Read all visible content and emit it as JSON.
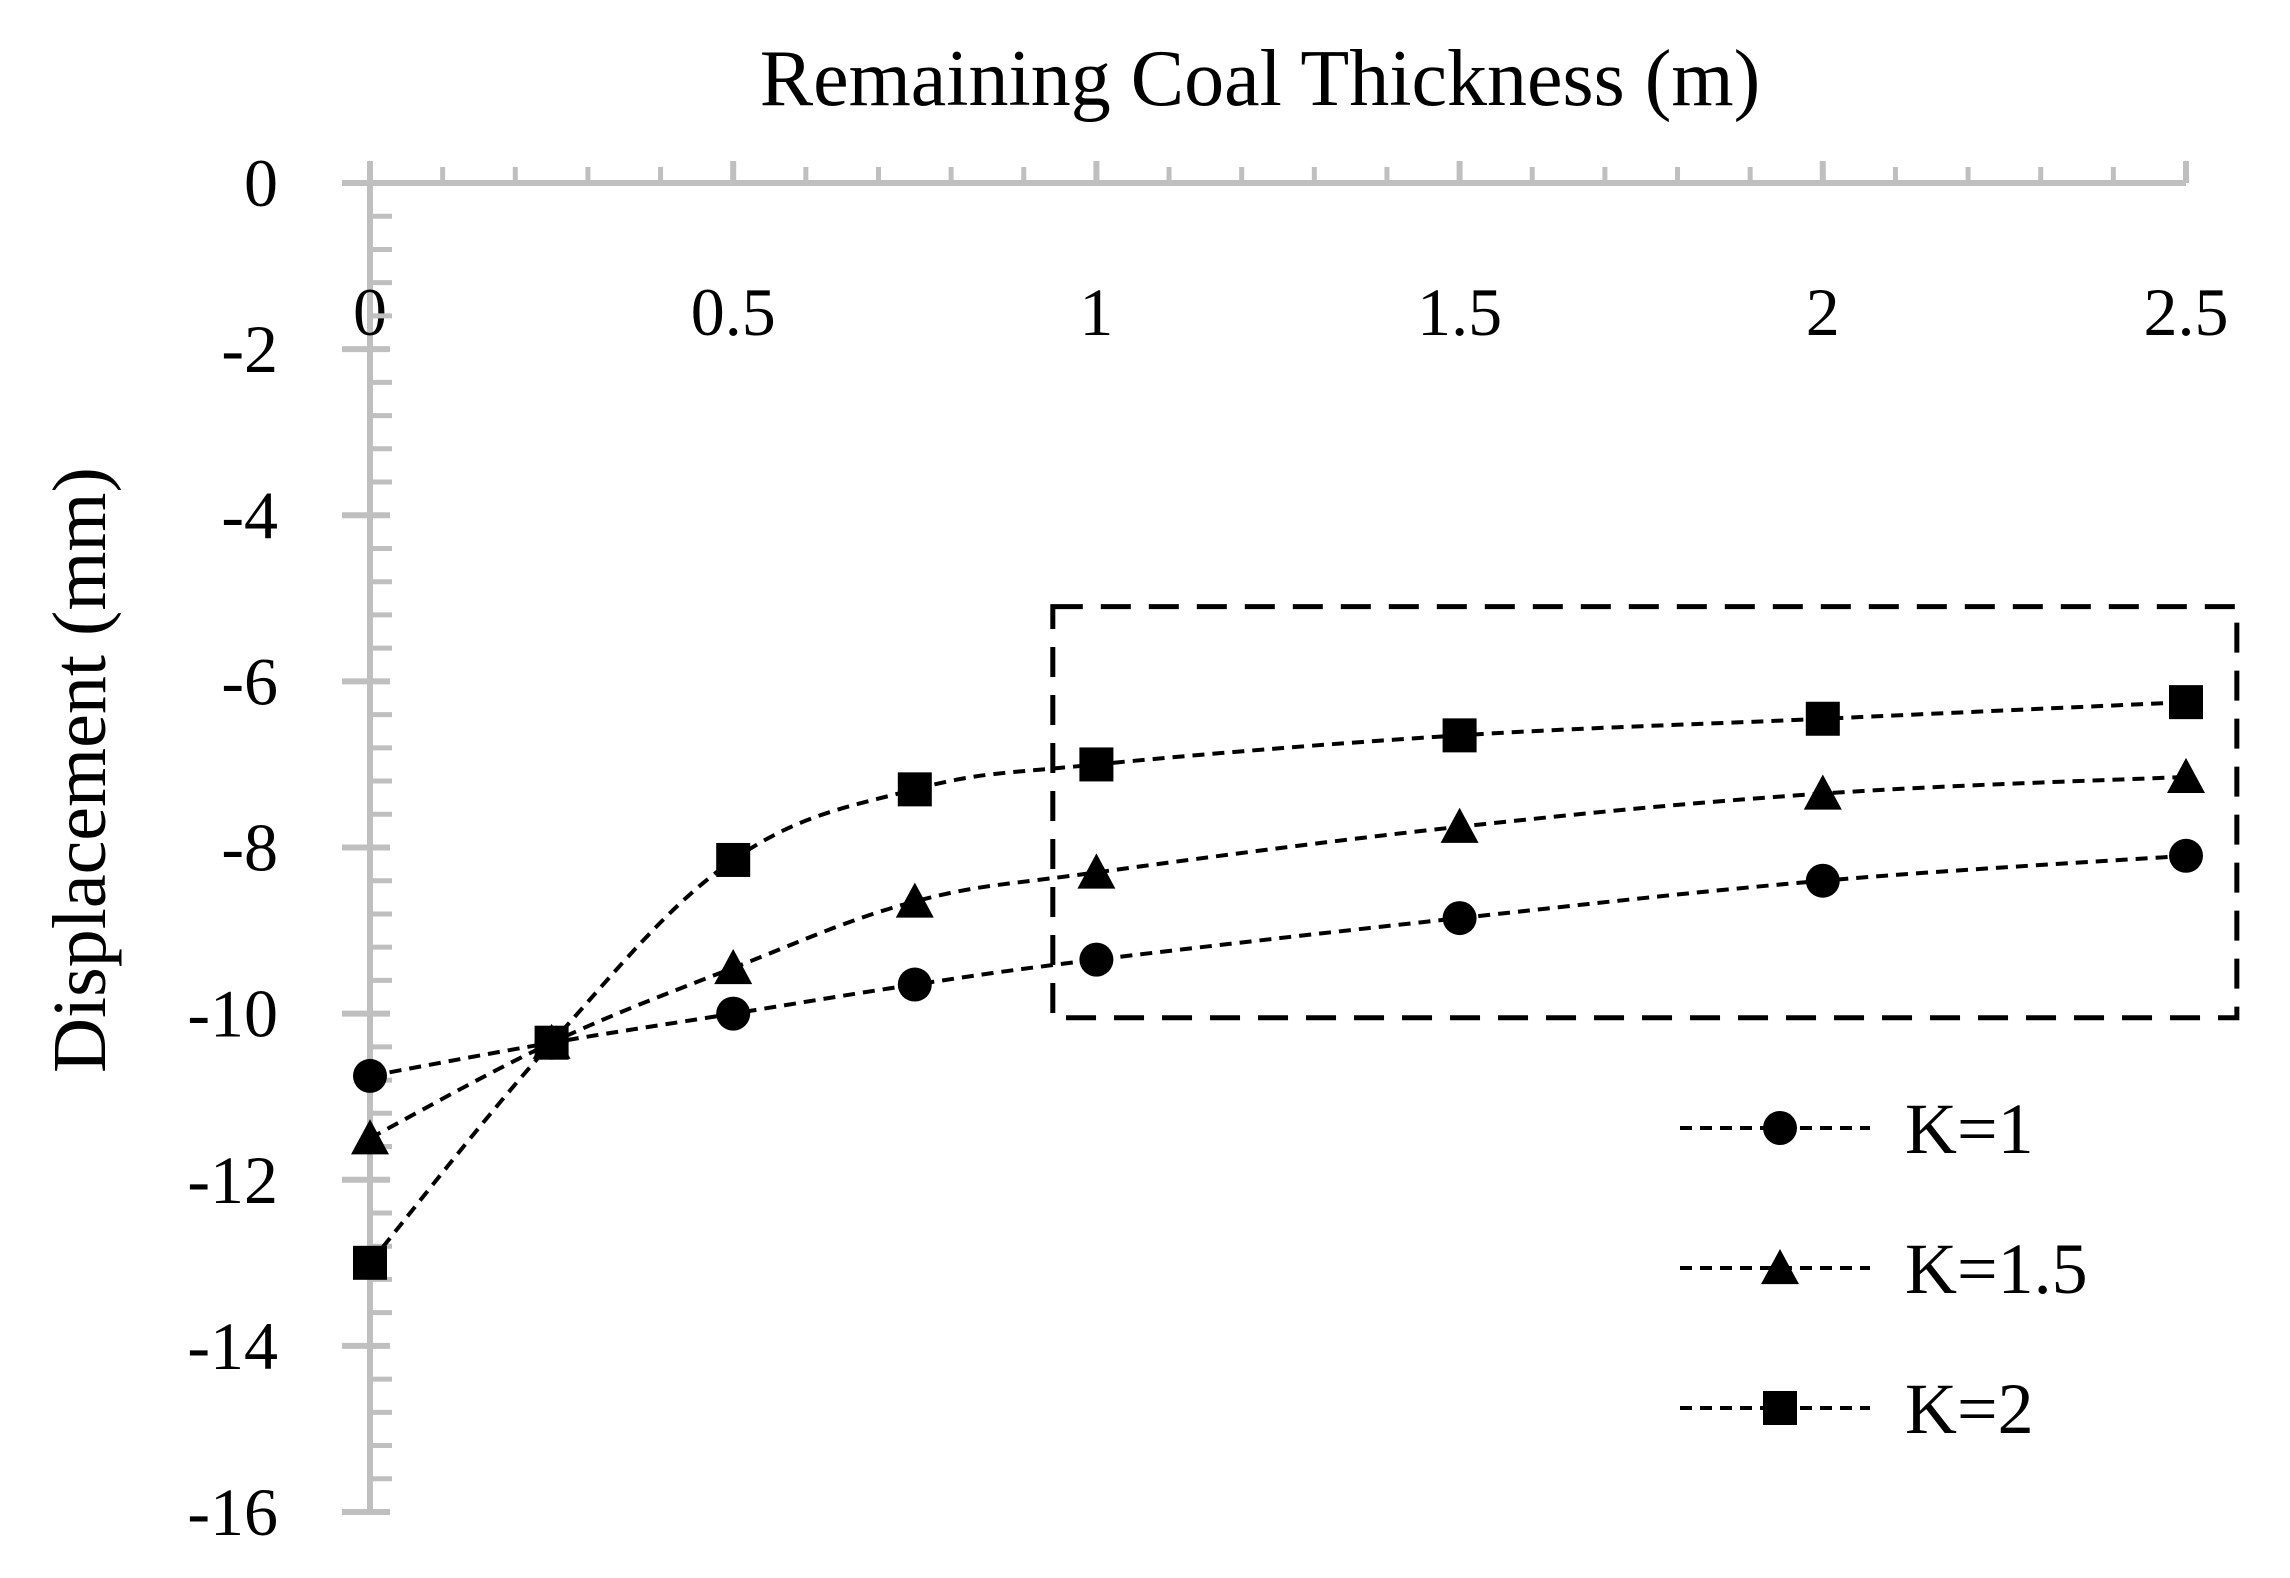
{
  "chart_data": {
    "type": "line",
    "title": "Remaining Coal Thickness (m)",
    "xlabel": "Remaining Coal Thickness (m)",
    "ylabel": "Displacement (mm)",
    "x_axis_position": "top",
    "xlim": [
      0,
      2.5
    ],
    "ylim": [
      -16,
      0
    ],
    "xticks": [
      0,
      0.5,
      1,
      1.5,
      2,
      2.5
    ],
    "xtick_labels": [
      "0",
      "0.5",
      "1",
      "1.5",
      "2",
      "2.5"
    ],
    "yticks": [
      0,
      -2,
      -4,
      -6,
      -8,
      -10,
      -12,
      -14,
      -16
    ],
    "ytick_labels": [
      "0",
      "-2",
      "-4",
      "-6",
      "-8",
      "-10",
      "-12",
      "-14",
      "-16"
    ],
    "grid": false,
    "legend_position": "bottom-right",
    "x": [
      0,
      0.25,
      0.5,
      0.75,
      1,
      1.5,
      2,
      2.5
    ],
    "series": [
      {
        "name": "K=1",
        "marker": "circle",
        "values": [
          -10.75,
          -10.35,
          -10.0,
          -9.65,
          -9.35,
          -8.85,
          -8.4,
          -8.1
        ]
      },
      {
        "name": "K=1.5",
        "marker": "triangle",
        "values": [
          -11.5,
          -10.35,
          -9.45,
          -8.65,
          -8.3,
          -7.75,
          -7.35,
          -7.15
        ]
      },
      {
        "name": "K=2",
        "marker": "square",
        "values": [
          -13.0,
          -10.35,
          -8.15,
          -7.3,
          -7.0,
          -6.65,
          -6.45,
          -6.25
        ]
      }
    ],
    "annotation": {
      "type": "dashed-box",
      "x_range": [
        0.94,
        2.57
      ],
      "y_range": [
        -10.05,
        -5.1
      ]
    },
    "colors": {
      "axis": "#bfbfbf",
      "series": "#000000"
    }
  }
}
